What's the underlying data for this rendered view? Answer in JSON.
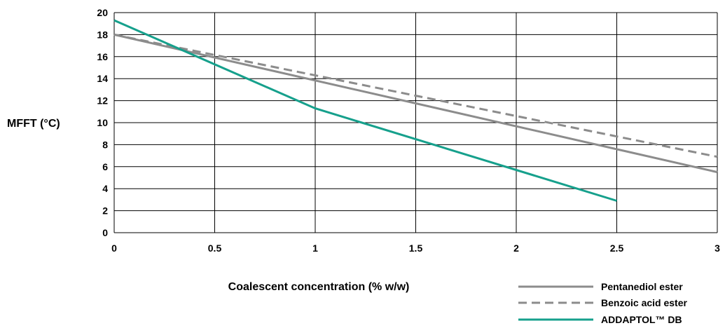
{
  "chart_data": {
    "type": "line",
    "title": "",
    "xlabel": "Coalescent concentration (% w/w)",
    "ylabel": "MFFT (°C)",
    "xlim": [
      0,
      3
    ],
    "ylim": [
      0,
      20
    ],
    "x_ticks": [
      "0",
      "0.5",
      "1",
      "1.5",
      "2",
      "2.5",
      "3"
    ],
    "y_ticks": [
      "0",
      "2",
      "4",
      "6",
      "8",
      "10",
      "12",
      "14",
      "16",
      "18",
      "20"
    ],
    "grid": true,
    "legend_position": "bottom-right",
    "series": [
      {
        "name": "Pentanediol ester",
        "color": "#8c8c8c",
        "dash": "solid",
        "x": [
          0,
          3
        ],
        "y": [
          18.0,
          5.5
        ]
      },
      {
        "name": "Benzoic acid ester",
        "color": "#8c8c8c",
        "dash": "dashed",
        "x": [
          0,
          3
        ],
        "y": [
          18.0,
          6.9
        ]
      },
      {
        "name": "ADDAPTOL™ DB",
        "color": "#16a08c",
        "dash": "solid",
        "x": [
          0,
          1,
          2.5
        ],
        "y": [
          19.3,
          11.3,
          2.9
        ]
      }
    ]
  }
}
